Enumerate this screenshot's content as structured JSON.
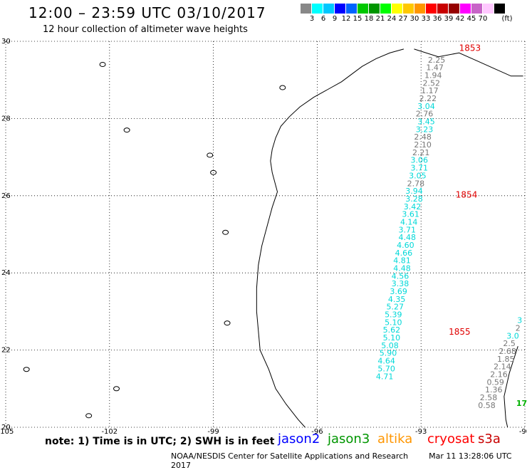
{
  "header": {
    "title": "12:00 – 23:59 UTC 03/10/2017",
    "subtitle": "12 hour collection of altimeter wave heights"
  },
  "legend": {
    "unit": "(ft)",
    "swatches": [
      {
        "color": "#888888",
        "label": ""
      },
      {
        "color": "#00ffff",
        "label": "3"
      },
      {
        "color": "#00c8ff",
        "label": "6"
      },
      {
        "color": "#0000ff",
        "label": "9"
      },
      {
        "color": "#0064ff",
        "label": "12"
      },
      {
        "color": "#00c800",
        "label": "15"
      },
      {
        "color": "#009600",
        "label": "18"
      },
      {
        "color": "#00ff00",
        "label": "21"
      },
      {
        "color": "#ffff00",
        "label": "24"
      },
      {
        "color": "#ffc800",
        "label": "27"
      },
      {
        "color": "#ff9600",
        "label": "30"
      },
      {
        "color": "#ff0000",
        "label": "33"
      },
      {
        "color": "#c80000",
        "label": "36"
      },
      {
        "color": "#960000",
        "label": "39"
      },
      {
        "color": "#ff00ff",
        "label": "42"
      },
      {
        "color": "#c864c8",
        "label": "45"
      },
      {
        "color": "#ffc8ff",
        "label": "70"
      },
      {
        "color": "#000000",
        "label": ""
      }
    ]
  },
  "map": {
    "lon_range": [
      -105,
      -90
    ],
    "lat_range": [
      20,
      30
    ],
    "lon_ticks": [
      -105,
      -102,
      -99,
      -96,
      -93,
      -90
    ],
    "lat_ticks": [
      20,
      22,
      24,
      26,
      28,
      30
    ],
    "grid": true
  },
  "orbits": [
    {
      "label": "1853",
      "lon": -91.9,
      "lat": 29.75
    },
    {
      "label": "1854",
      "lon": -92.0,
      "lat": 25.95
    },
    {
      "label": "1855",
      "lon": -92.2,
      "lat": 22.4
    }
  ],
  "track_main": [
    {
      "v": "2.25",
      "lon": -92.55,
      "lat": 29.45,
      "c": "#777777"
    },
    {
      "v": "1.47",
      "lon": -92.6,
      "lat": 29.25,
      "c": "#777777"
    },
    {
      "v": "1.94",
      "lon": -92.65,
      "lat": 29.05,
      "c": "#777777"
    },
    {
      "v": "2.52",
      "lon": -92.7,
      "lat": 28.85,
      "c": "#777777"
    },
    {
      "v": "1.17",
      "lon": -92.75,
      "lat": 28.65,
      "c": "#777777"
    },
    {
      "v": "2.22",
      "lon": -92.8,
      "lat": 28.45,
      "c": "#777777"
    },
    {
      "v": "3.04",
      "lon": -92.85,
      "lat": 28.25,
      "c": "#00d8d8"
    },
    {
      "v": "2.76",
      "lon": -92.9,
      "lat": 28.05,
      "c": "#777777"
    },
    {
      "v": "3.45",
      "lon": -92.85,
      "lat": 27.85,
      "c": "#00d8d8"
    },
    {
      "v": "3.23",
      "lon": -92.9,
      "lat": 27.65,
      "c": "#00d8d8"
    },
    {
      "v": "2.48",
      "lon": -92.95,
      "lat": 27.45,
      "c": "#777777"
    },
    {
      "v": "2.10",
      "lon": -92.95,
      "lat": 27.25,
      "c": "#777777"
    },
    {
      "v": "2.21",
      "lon": -93.0,
      "lat": 27.05,
      "c": "#777777"
    },
    {
      "v": "3.06",
      "lon": -93.05,
      "lat": 26.85,
      "c": "#00d8d8"
    },
    {
      "v": "3.71",
      "lon": -93.05,
      "lat": 26.65,
      "c": "#00d8d8"
    },
    {
      "v": "3.05",
      "lon": -93.1,
      "lat": 26.45,
      "c": "#00d8d8"
    },
    {
      "v": "2.78",
      "lon": -93.15,
      "lat": 26.25,
      "c": "#777777"
    },
    {
      "v": "3.94",
      "lon": -93.2,
      "lat": 26.05,
      "c": "#00d8d8"
    },
    {
      "v": "3.28",
      "lon": -93.2,
      "lat": 25.85,
      "c": "#00d8d8"
    },
    {
      "v": "3.42",
      "lon": -93.25,
      "lat": 25.65,
      "c": "#00d8d8"
    },
    {
      "v": "3.61",
      "lon": -93.3,
      "lat": 25.45,
      "c": "#00d8d8"
    },
    {
      "v": "4.14",
      "lon": -93.35,
      "lat": 25.25,
      "c": "#00d8d8"
    },
    {
      "v": "3.71",
      "lon": -93.4,
      "lat": 25.05,
      "c": "#00d8d8"
    },
    {
      "v": "4.48",
      "lon": -93.4,
      "lat": 24.85,
      "c": "#00d8d8"
    },
    {
      "v": "4.60",
      "lon": -93.45,
      "lat": 24.65,
      "c": "#00d8d8"
    },
    {
      "v": "4.66",
      "lon": -93.5,
      "lat": 24.45,
      "c": "#00d8d8"
    },
    {
      "v": "4.81",
      "lon": -93.55,
      "lat": 24.25,
      "c": "#00d8d8"
    },
    {
      "v": "4.48",
      "lon": -93.55,
      "lat": 24.05,
      "c": "#00d8d8"
    },
    {
      "v": "4.56",
      "lon": -93.6,
      "lat": 23.85,
      "c": "#00d8d8"
    },
    {
      "v": "3.38",
      "lon": -93.6,
      "lat": 23.65,
      "c": "#00d8d8"
    },
    {
      "v": "3.69",
      "lon": -93.65,
      "lat": 23.45,
      "c": "#00d8d8"
    },
    {
      "v": "4.35",
      "lon": -93.7,
      "lat": 23.25,
      "c": "#00d8d8"
    },
    {
      "v": "5.27",
      "lon": -93.75,
      "lat": 23.05,
      "c": "#00d8d8"
    },
    {
      "v": "5.39",
      "lon": -93.8,
      "lat": 22.85,
      "c": "#00d8d8"
    },
    {
      "v": "5.10",
      "lon": -93.8,
      "lat": 22.65,
      "c": "#00d8d8"
    },
    {
      "v": "5.62",
      "lon": -93.85,
      "lat": 22.45,
      "c": "#00d8d8"
    },
    {
      "v": "5.10",
      "lon": -93.85,
      "lat": 22.25,
      "c": "#00d8d8"
    },
    {
      "v": "5.08",
      "lon": -93.9,
      "lat": 22.05,
      "c": "#00d8d8"
    },
    {
      "v": "5.90",
      "lon": -93.95,
      "lat": 21.85,
      "c": "#00d8d8"
    },
    {
      "v": "4.64",
      "lon": -94.0,
      "lat": 21.65,
      "c": "#00d8d8"
    },
    {
      "v": "5.70",
      "lon": -94.0,
      "lat": 21.45,
      "c": "#00d8d8"
    },
    {
      "v": "4.71",
      "lon": -94.05,
      "lat": 21.25,
      "c": "#00d8d8"
    }
  ],
  "track_east": [
    {
      "v": "3",
      "lon": -90.15,
      "lat": 22.7,
      "c": "#00d8d8"
    },
    {
      "v": "2",
      "lon": -90.2,
      "lat": 22.5,
      "c": "#777777"
    },
    {
      "v": "3.0",
      "lon": -90.35,
      "lat": 22.3,
      "c": "#00d8d8"
    },
    {
      "v": "2.5",
      "lon": -90.45,
      "lat": 22.1,
      "c": "#777777"
    },
    {
      "v": "2.68",
      "lon": -90.5,
      "lat": 21.9,
      "c": "#777777"
    },
    {
      "v": "1.85",
      "lon": -90.55,
      "lat": 21.7,
      "c": "#777777"
    },
    {
      "v": "2.14",
      "lon": -90.65,
      "lat": 21.5,
      "c": "#777777"
    },
    {
      "v": "2.16",
      "lon": -90.75,
      "lat": 21.3,
      "c": "#777777"
    },
    {
      "v": "0.59",
      "lon": -90.85,
      "lat": 21.1,
      "c": "#777777"
    },
    {
      "v": "1.36",
      "lon": -90.9,
      "lat": 20.9,
      "c": "#777777"
    },
    {
      "v": "2.58",
      "lon": -91.05,
      "lat": 20.7,
      "c": "#777777"
    },
    {
      "v": "0.58",
      "lon": -91.1,
      "lat": 20.5,
      "c": "#777777"
    }
  ],
  "edge_label": {
    "v": "17",
    "lon": -90.25,
    "lat": 20.55,
    "c": "#00b000"
  },
  "footer": {
    "note": "note: 1) Time is in UTC; 2) SWH is in feet",
    "satellites": [
      {
        "name": "jason2",
        "color": "#0000ff"
      },
      {
        "name": "jason3",
        "color": "#009600"
      },
      {
        "name": "altika",
        "color": "#ff9600"
      },
      {
        "name": "cryosat",
        "color": "#ff0000"
      },
      {
        "name": "s3a",
        "color": "#c80000"
      }
    ],
    "credit": "NOAA/NESDIS Center for Satellite Applications and Research",
    "timestamp": "Mar 11 13:28:06 UTC 2017"
  }
}
